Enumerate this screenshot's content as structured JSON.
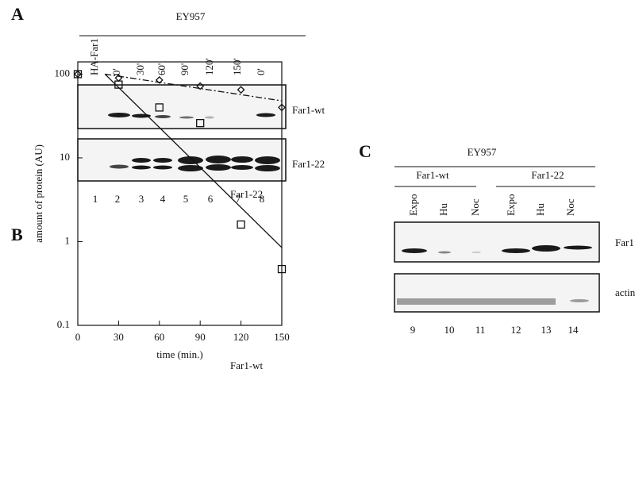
{
  "panel_a": {
    "label": "A",
    "strain": "EY957",
    "lanes": [
      "HA-Far1",
      "0'",
      "30'",
      "60'",
      "90'",
      "120'",
      "150'",
      "0'"
    ],
    "blots": [
      "Far1-wt",
      "Far1-22"
    ],
    "lane_numbers": [
      "1",
      "2",
      "3",
      "4",
      "5",
      "6",
      "7",
      "8"
    ]
  },
  "chart_data": {
    "type": "scatter",
    "label": "B",
    "xlabel": "time (min.)",
    "ylabel": "amount of protein (AU)",
    "log_y": true,
    "xlim": [
      0,
      150
    ],
    "xticks": [
      0,
      30,
      60,
      90,
      120,
      150
    ],
    "ylim": [
      0.1,
      140
    ],
    "yticks": [
      0.1,
      1,
      10,
      100
    ],
    "series": [
      {
        "name": "Far1-wt",
        "marker": "square",
        "color": "#111",
        "dash": "solid",
        "x": [
          0,
          30,
          60,
          90,
          120,
          150
        ],
        "values": [
          100,
          75,
          40,
          26,
          1.6,
          0.47
        ],
        "fit_x": [
          20,
          150
        ],
        "fit_values": [
          100,
          0.85
        ]
      },
      {
        "name": "Far1-22",
        "marker": "diamond",
        "color": "#111",
        "dash": "dashdot",
        "x": [
          0,
          30,
          60,
          90,
          120,
          150
        ],
        "values": [
          100,
          90,
          85,
          72,
          65,
          40
        ],
        "fit_x": [
          20,
          150
        ],
        "fit_values": [
          100,
          48
        ]
      }
    ]
  },
  "panel_c": {
    "label": "C",
    "strain": "EY957",
    "groups": [
      "Far1-wt",
      "Far1-22"
    ],
    "lanes": [
      "Expo",
      "Hu",
      "Noc",
      "Expo",
      "Hu",
      "Noc"
    ],
    "blots": [
      "Far1",
      "actin"
    ],
    "lane_numbers": [
      "9",
      "10",
      "11",
      "12",
      "13",
      "14"
    ]
  }
}
